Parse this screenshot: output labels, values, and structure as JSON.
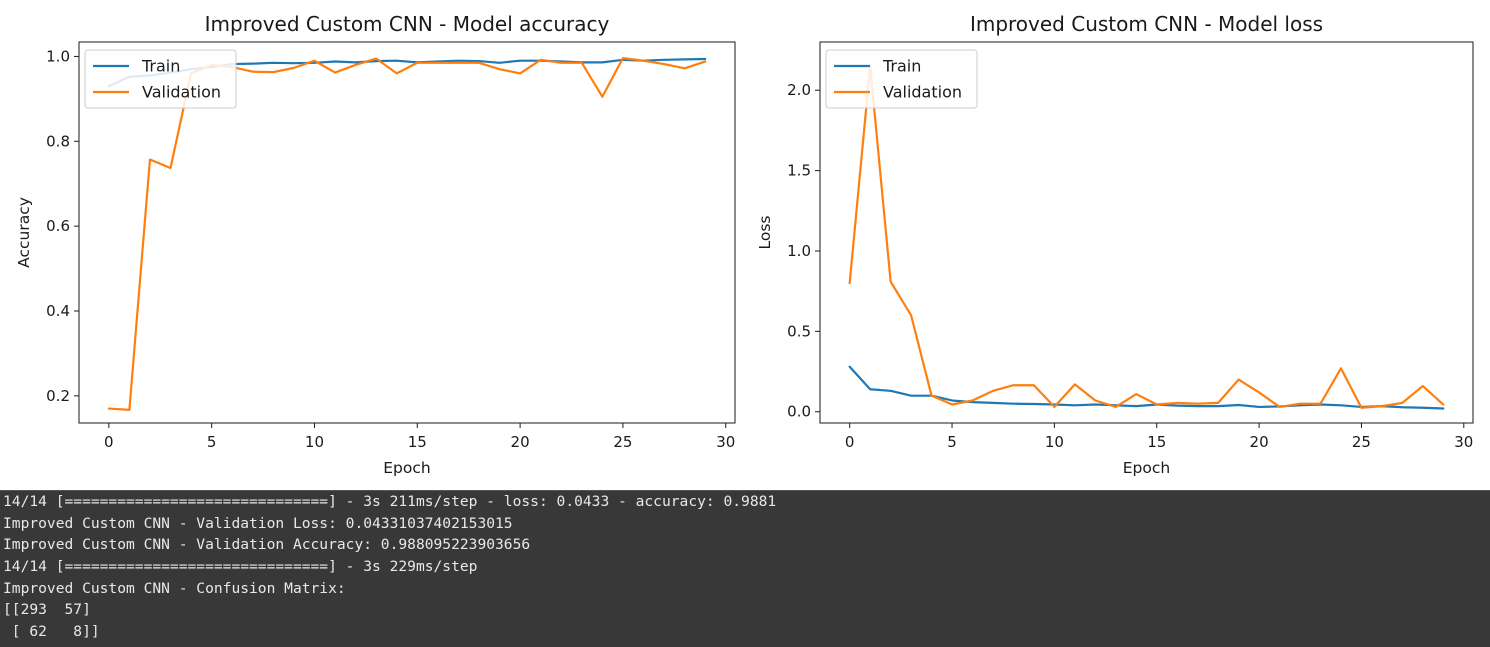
{
  "chart_data": [
    {
      "type": "line",
      "title": "Improved Custom CNN - Model accuracy",
      "xlabel": "Epoch",
      "ylabel": "Accuracy",
      "xlim": [
        -1.45,
        30.45
      ],
      "ylim": [
        0.136,
        1.034
      ],
      "xticks": [
        0,
        5,
        10,
        15,
        20,
        25,
        30
      ],
      "yticks": [
        0.2,
        0.4,
        0.6,
        0.8,
        1.0
      ],
      "ytick_labels": [
        "0.2",
        "0.4",
        "0.6",
        "0.8",
        "1.0"
      ],
      "grid": false,
      "legend_position": "upper-left",
      "x": [
        0,
        1,
        2,
        3,
        4,
        5,
        6,
        7,
        8,
        9,
        10,
        11,
        12,
        13,
        14,
        15,
        16,
        17,
        18,
        19,
        20,
        21,
        22,
        23,
        24,
        25,
        26,
        27,
        28,
        29
      ],
      "series": [
        {
          "name": "Train",
          "color": "#1f77b4",
          "values": [
            0.93,
            0.952,
            0.955,
            0.962,
            0.97,
            0.975,
            0.982,
            0.983,
            0.985,
            0.984,
            0.985,
            0.988,
            0.986,
            0.989,
            0.99,
            0.986,
            0.988,
            0.99,
            0.989,
            0.985,
            0.99,
            0.99,
            0.988,
            0.986,
            0.986,
            0.992,
            0.99,
            0.992,
            0.993,
            0.994
          ]
        },
        {
          "name": "Validation",
          "color": "#ff7f0e",
          "values": [
            0.17,
            0.167,
            0.757,
            0.737,
            0.96,
            0.98,
            0.975,
            0.964,
            0.963,
            0.973,
            0.99,
            0.962,
            0.98,
            0.995,
            0.96,
            0.985,
            0.985,
            0.985,
            0.985,
            0.97,
            0.96,
            0.992,
            0.985,
            0.985,
            0.905,
            0.996,
            0.99,
            0.982,
            0.972,
            0.988
          ]
        }
      ]
    },
    {
      "type": "line",
      "title": "Improved Custom CNN - Model loss",
      "xlabel": "Epoch",
      "ylabel": "Loss",
      "xlim": [
        -1.45,
        30.45
      ],
      "ylim": [
        -0.07,
        2.3
      ],
      "xticks": [
        0,
        5,
        10,
        15,
        20,
        25,
        30
      ],
      "yticks": [
        0.0,
        0.5,
        1.0,
        1.5,
        2.0
      ],
      "ytick_labels": [
        "0.0",
        "0.5",
        "1.0",
        "1.5",
        "2.0"
      ],
      "grid": false,
      "legend_position": "upper-left",
      "x": [
        0,
        1,
        2,
        3,
        4,
        5,
        6,
        7,
        8,
        9,
        10,
        11,
        12,
        13,
        14,
        15,
        16,
        17,
        18,
        19,
        20,
        21,
        22,
        23,
        24,
        25,
        26,
        27,
        28,
        29
      ],
      "series": [
        {
          "name": "Train",
          "color": "#1f77b4",
          "values": [
            0.28,
            0.14,
            0.13,
            0.1,
            0.1,
            0.07,
            0.06,
            0.055,
            0.05,
            0.048,
            0.045,
            0.04,
            0.045,
            0.04,
            0.035,
            0.045,
            0.038,
            0.035,
            0.035,
            0.042,
            0.03,
            0.033,
            0.04,
            0.045,
            0.04,
            0.03,
            0.035,
            0.028,
            0.025,
            0.02
          ]
        },
        {
          "name": "Validation",
          "color": "#ff7f0e",
          "values": [
            0.8,
            2.15,
            0.81,
            0.6,
            0.1,
            0.045,
            0.07,
            0.13,
            0.165,
            0.165,
            0.03,
            0.17,
            0.07,
            0.03,
            0.11,
            0.045,
            0.055,
            0.05,
            0.055,
            0.2,
            0.12,
            0.03,
            0.05,
            0.05,
            0.27,
            0.025,
            0.035,
            0.055,
            0.16,
            0.045
          ]
        }
      ]
    }
  ],
  "console": {
    "lines": [
      "14/14 [==============================] - 3s 211ms/step - loss: 0.0433 - accuracy: 0.9881",
      "Improved Custom CNN - Validation Loss: 0.04331037402153015",
      "Improved Custom CNN - Validation Accuracy: 0.988095223903656",
      "14/14 [==============================] - 3s 229ms/step",
      "Improved Custom CNN - Confusion Matrix:",
      "[[293  57]",
      " [ 62   8]]"
    ]
  }
}
